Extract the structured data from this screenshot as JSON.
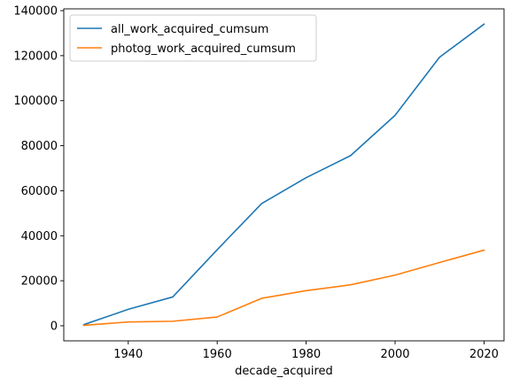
{
  "chart_data": {
    "type": "line",
    "title": "",
    "xlabel": "decade_acquired",
    "ylabel": "",
    "x": [
      1930,
      1940,
      1950,
      1960,
      1970,
      1980,
      1990,
      2000,
      2010,
      2020
    ],
    "series": [
      {
        "name": "all_work_acquired_cumsum",
        "color": "#1f77b4",
        "values": [
          500,
          7300,
          12800,
          33800,
          54300,
          65800,
          75600,
          93500,
          119300,
          134000
        ]
      },
      {
        "name": "photog_work_acquired_cumsum",
        "color": "#ff7f0e",
        "values": [
          200,
          1700,
          2000,
          3900,
          12200,
          15600,
          18200,
          22500,
          28100,
          33600
        ]
      }
    ],
    "xlim": [
      1925.5,
      2024.5
    ],
    "ylim": [
      -6700,
      140800
    ],
    "xticks": [
      1940,
      1960,
      1980,
      2000,
      2020
    ],
    "yticks": [
      0,
      20000,
      40000,
      60000,
      80000,
      100000,
      120000,
      140000
    ],
    "grid": false,
    "legend_position": "top-left"
  }
}
